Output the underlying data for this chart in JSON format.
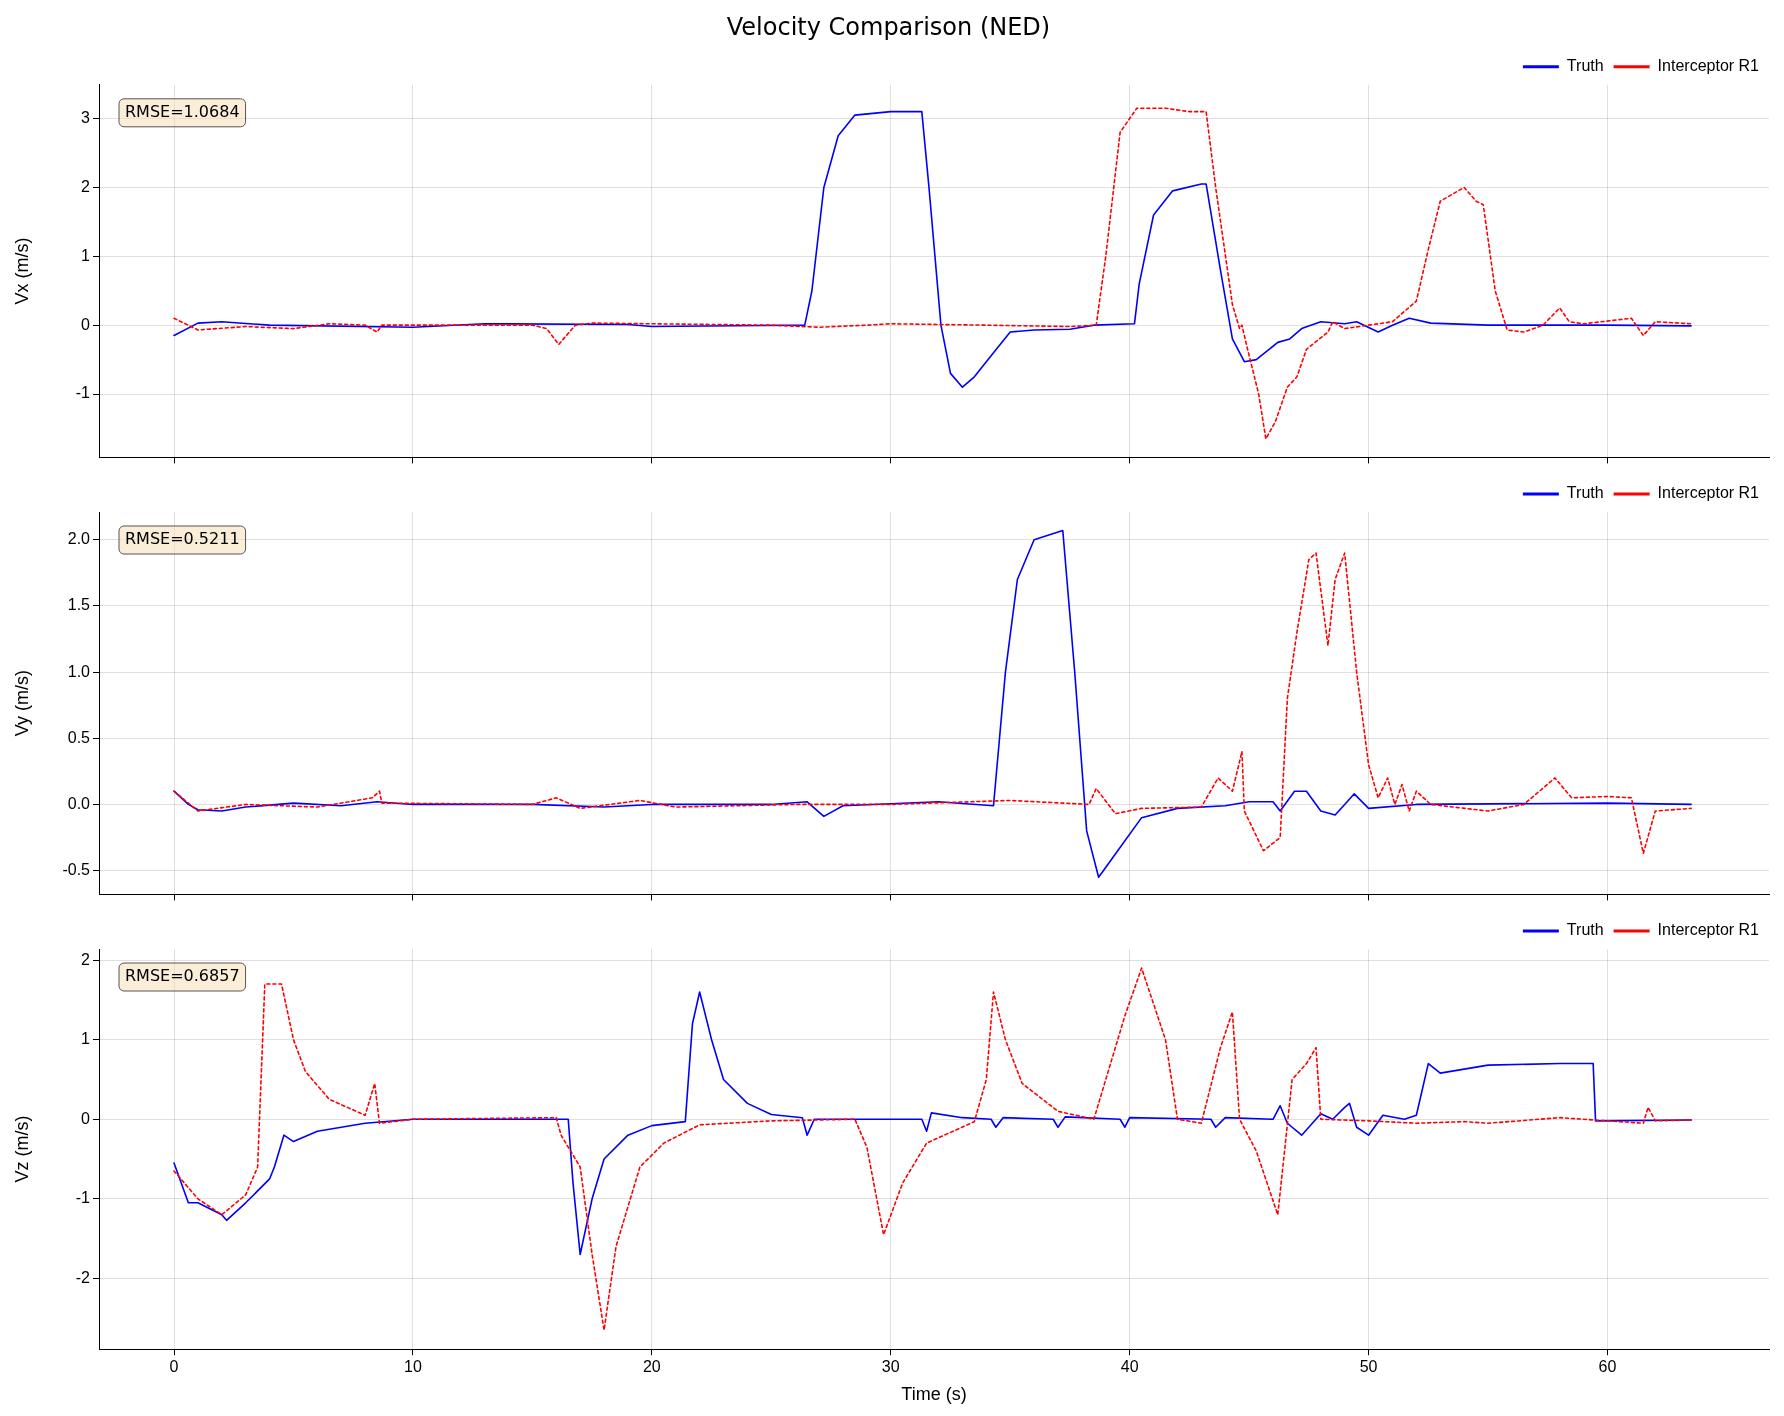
{
  "chart_data": [
    {
      "type": "line",
      "title": "Velocity Comparison (NED)",
      "ylabel": "Vx (m/s)",
      "annotations": [
        "RMSE=1.0684"
      ],
      "xlim": [
        -3.14,
        66.76
      ],
      "xticks": [
        0,
        10,
        20,
        30,
        40,
        50,
        60
      ],
      "ylim": [
        -1.92,
        3.49
      ],
      "yticks": [
        -1,
        0,
        1,
        2,
        3
      ],
      "tick_labels": "y",
      "grid": true,
      "legend": "top right",
      "marker": "none",
      "series": [
        {
          "name": "Truth",
          "color": "#0000ff",
          "line_style": "solid",
          "x": [
            0,
            1,
            2,
            4,
            10,
            13,
            19,
            20,
            26.4,
            26.7,
            27.2,
            27.8,
            28.5,
            30,
            31.3,
            31.6,
            32.1,
            32.5,
            33,
            33.5,
            34.3,
            35,
            36,
            37.5,
            38.5,
            40.2,
            40.4,
            41,
            41.8,
            43,
            43.2,
            43.8,
            44.3,
            44.8,
            45.3,
            46.2,
            46.7,
            47.2,
            48,
            49,
            49.5,
            50.4,
            51,
            51.7,
            52.6,
            55,
            60,
            63.5
          ],
          "values": [
            -0.15,
            0.03,
            0.05,
            0,
            -0.03,
            0.02,
            0.01,
            -0.02,
            0,
            0.5,
            2,
            2.75,
            3.05,
            3.1,
            3.1,
            2,
            0,
            -0.7,
            -0.9,
            -0.75,
            -0.4,
            -0.1,
            -0.07,
            -0.06,
            0,
            0.02,
            0.6,
            1.6,
            1.95,
            2.05,
            2.05,
            0.8,
            -0.2,
            -0.53,
            -0.5,
            -0.25,
            -0.2,
            -0.05,
            0.05,
            0.02,
            0.05,
            -0.1,
            0,
            0.1,
            0.03,
            0,
            0,
            -0.01
          ]
        },
        {
          "name": "Interceptor R1",
          "color": "#ff0000",
          "line_style": "dashed",
          "x": [
            0,
            1,
            3,
            5,
            6.5,
            8,
            8.5,
            8.7,
            15,
            15.6,
            16.1,
            16.8,
            17.5,
            20,
            25,
            27,
            29,
            30,
            34,
            37.5,
            38.6,
            39,
            39.6,
            40.3,
            41.5,
            42.5,
            43.2,
            43.6,
            44.3,
            44.6,
            44.7,
            44.9,
            45.4,
            45.7,
            46.1,
            46.6,
            47,
            47.4,
            48.3,
            48.5,
            49,
            50,
            51,
            52,
            52.5,
            53,
            54,
            54.5,
            54.8,
            55.3,
            55.8,
            56.5,
            57.3,
            58,
            58.4,
            59,
            61,
            61.5,
            62,
            63.5
          ],
          "values": [
            0.1,
            -0.07,
            -0.02,
            -0.05,
            0.02,
            0,
            -0.1,
            0,
            0,
            -0.05,
            -0.28,
            0,
            0.03,
            0.02,
            0,
            -0.03,
            0,
            0.02,
            0,
            -0.02,
            0,
            1,
            2.8,
            3.15,
            3.15,
            3.1,
            3.1,
            2,
            0.3,
            -0.05,
            0,
            -0.3,
            -1,
            -1.65,
            -1.4,
            -0.9,
            -0.75,
            -0.35,
            -0.1,
            0.05,
            -0.05,
            0,
            0.05,
            0.35,
            1.1,
            1.8,
            2,
            1.8,
            1.75,
            0.5,
            -0.07,
            -0.1,
            0,
            0.25,
            0.05,
            0.02,
            0.1,
            -0.15,
            0.05,
            0.02
          ]
        }
      ]
    },
    {
      "type": "line",
      "ylabel": "Vy (m/s)",
      "annotations": [
        "RMSE=0.5211"
      ],
      "xlim": [
        -3.14,
        66.76
      ],
      "xticks": [
        0,
        10,
        20,
        30,
        40,
        50,
        60
      ],
      "ylim": [
        -0.68,
        2.21
      ],
      "yticks": [
        {
          "value": -0.5,
          "label": "-0.5"
        },
        {
          "value": 0,
          "label": "0.0"
        },
        {
          "value": 0.5,
          "label": "0.5"
        },
        {
          "value": 1,
          "label": "1.0"
        },
        {
          "value": 1.5,
          "label": "1.5"
        },
        {
          "value": 2,
          "label": "2.0"
        }
      ],
      "tick_labels": "y",
      "grid": true,
      "legend": "top right",
      "marker": "none",
      "series": [
        {
          "name": "Truth",
          "color": "#0000ff",
          "line_style": "solid",
          "x": [
            0,
            0.6,
            1,
            2,
            3,
            5,
            7,
            8.5,
            10,
            15,
            18,
            20,
            25,
            26.5,
            27.2,
            28,
            32,
            34.3,
            34.8,
            35.3,
            36,
            37.2,
            37.7,
            38.2,
            38.7,
            39.5,
            40.5,
            42,
            44,
            45,
            46,
            46.3,
            46.9,
            47.4,
            48,
            48.6,
            49,
            49.4,
            50,
            52,
            60,
            63.5
          ],
          "values": [
            0.1,
            0,
            -0.04,
            -0.05,
            -0.02,
            0.01,
            -0.01,
            0.02,
            0,
            0,
            -0.02,
            0,
            0,
            0.02,
            -0.09,
            -0.01,
            0.02,
            -0.01,
            1,
            1.7,
            2,
            2.07,
            1,
            -0.2,
            -0.55,
            -0.35,
            -0.1,
            -0.03,
            -0.01,
            0.02,
            0.02,
            -0.05,
            0.1,
            0.1,
            -0.05,
            -0.08,
            0,
            0.08,
            -0.03,
            0,
            0.01,
            0
          ]
        },
        {
          "name": "Interceptor R1",
          "color": "#ff0000",
          "line_style": "dashed",
          "x": [
            0,
            1,
            3,
            6,
            8.3,
            8.6,
            8.7,
            15,
            16,
            17,
            19.5,
            21,
            26,
            30,
            35,
            38.3,
            38.6,
            39.4,
            40.5,
            43,
            43.7,
            44.3,
            44.7,
            44.8,
            45.6,
            46.3,
            46.6,
            47,
            47.5,
            47.8,
            48.3,
            48.6,
            49,
            49.5,
            50,
            50.4,
            50.8,
            51.1,
            51.4,
            51.7,
            52,
            52.6,
            55,
            56.5,
            57.8,
            58.5,
            60,
            61,
            61.5,
            62,
            63.5
          ],
          "values": [
            0.1,
            -0.05,
            0,
            -0.02,
            0.05,
            0.1,
            0.01,
            0,
            0.05,
            -0.03,
            0.03,
            -0.02,
            0,
            0,
            0.03,
            0,
            0.12,
            -0.07,
            -0.03,
            -0.02,
            0.2,
            0.1,
            0.4,
            -0.05,
            -0.35,
            -0.25,
            0.8,
            1.3,
            1.85,
            1.9,
            1.2,
            1.7,
            1.9,
            1,
            0.3,
            0.05,
            0.2,
            0,
            0.15,
            -0.05,
            0.1,
            0,
            -0.05,
            0,
            0.2,
            0.05,
            0.06,
            0.05,
            -0.37,
            -0.05,
            -0.03
          ]
        }
      ]
    },
    {
      "type": "line",
      "xlabel": "Time (s)",
      "ylabel": "Vz (m/s)",
      "annotations": [
        "RMSE=0.6857"
      ],
      "xlim": [
        -3.14,
        66.76
      ],
      "xticks": [
        0,
        10,
        20,
        30,
        40,
        50,
        60
      ],
      "ylim": [
        -2.89,
        2.14
      ],
      "yticks": [
        -2,
        -1,
        0,
        1,
        2
      ],
      "grid": true,
      "legend": "top right",
      "marker": "none",
      "series": [
        {
          "name": "Truth",
          "color": "#0000ff",
          "line_style": "solid",
          "x": [
            0,
            0.6,
            1,
            2,
            2.2,
            3,
            4,
            4.2,
            4.6,
            5,
            6,
            8,
            10,
            15,
            16.5,
            16.7,
            17,
            17.5,
            18,
            19,
            20,
            21.4,
            21.7,
            22,
            22.5,
            23,
            24,
            25,
            26.3,
            26.5,
            26.8,
            30,
            31.3,
            31.5,
            31.7,
            33,
            34.2,
            34.4,
            34.7,
            36.8,
            37,
            37.3,
            39.6,
            39.8,
            40,
            43.4,
            43.6,
            44,
            46,
            46.3,
            46.6,
            47.2,
            48,
            48.5,
            49,
            49.2,
            49.5,
            50,
            50.6,
            51.5,
            52,
            52.5,
            53,
            55,
            58,
            59.4,
            59.5,
            63.5
          ],
          "values": [
            -0.55,
            -1.05,
            -1.05,
            -1.2,
            -1.27,
            -1.05,
            -0.75,
            -0.6,
            -0.2,
            -0.28,
            -0.15,
            -0.05,
            0,
            0,
            0,
            -0.8,
            -1.7,
            -1,
            -0.5,
            -0.2,
            -0.08,
            -0.03,
            1.2,
            1.6,
            1,
            0.5,
            0.2,
            0.06,
            0.02,
            -0.2,
            0,
            0,
            0,
            -0.15,
            0.08,
            0.02,
            0,
            -0.1,
            0.02,
            0,
            -0.1,
            0.03,
            0,
            -0.1,
            0.02,
            0,
            -0.1,
            0.02,
            0,
            0.17,
            -0.05,
            -0.2,
            0.07,
            0,
            0.15,
            0.2,
            -0.1,
            -0.2,
            0.05,
            0,
            0.05,
            0.7,
            0.58,
            0.68,
            0.7,
            0.7,
            -0.02,
            -0.01
          ]
        },
        {
          "name": "Interceptor R1",
          "color": "#ff0000",
          "line_style": "dashed",
          "x": [
            0,
            1,
            2,
            3,
            3.5,
            3.8,
            4.5,
            5,
            5.5,
            6.5,
            8,
            8.4,
            8.6,
            10,
            16,
            16.2,
            17,
            17.5,
            18,
            18.5,
            19.5,
            20.5,
            22,
            25,
            28.5,
            29,
            29.7,
            30.5,
            31.5,
            33.5,
            34,
            34.3,
            34.8,
            35.5,
            37,
            38.5,
            39.2,
            39.8,
            40.5,
            41.5,
            42,
            43,
            43.8,
            44.3,
            44.6,
            45.3,
            46.2,
            46.8,
            47.4,
            47.8,
            48,
            50,
            52,
            54,
            55,
            58,
            61.5,
            61.7,
            62,
            63.5
          ],
          "values": [
            -0.65,
            -1,
            -1.2,
            -0.95,
            -0.6,
            1.7,
            1.7,
            1,
            0.6,
            0.25,
            0.05,
            0.45,
            -0.05,
            0,
            0.02,
            -0.2,
            -0.6,
            -1.7,
            -2.65,
            -1.6,
            -0.6,
            -0.3,
            -0.07,
            -0.02,
            0,
            -0.35,
            -1.45,
            -0.8,
            -0.3,
            -0.03,
            0.5,
            1.6,
            1,
            0.45,
            0.1,
            0,
            0.7,
            1.3,
            1.9,
            1,
            0,
            -0.05,
            0.9,
            1.35,
            0,
            -0.4,
            -1.2,
            0.5,
            0.7,
            0.9,
            0,
            -0.02,
            -0.05,
            -0.03,
            -0.05,
            0.02,
            -0.05,
            0.15,
            -0.02,
            -0.01
          ]
        }
      ]
    }
  ]
}
